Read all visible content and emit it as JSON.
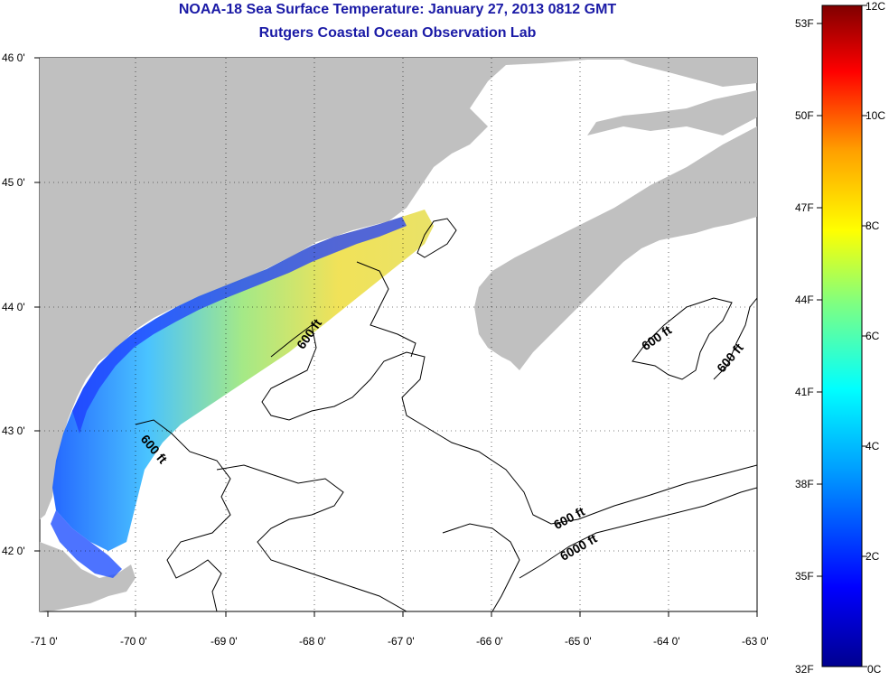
{
  "title_line1": "NOAA-18 Sea Surface Temperature:  January 27, 2013 0812 GMT",
  "title_line2": "Rutgers Coastal Ocean Observation Lab",
  "lon_labels": [
    "-71 0'",
    "-70 0'",
    "-69 0'",
    "-68 0'",
    "-67 0'",
    "-66 0'",
    "-65 0'",
    "-64 0'",
    "-63 0'"
  ],
  "lat_labels": [
    "46 0'",
    "45 0'",
    "44 0'",
    "43 0'",
    "42 0'"
  ],
  "contour_labels": [
    "600 ft",
    "600 ft",
    "600 ft",
    "600 ft",
    "600 ft",
    "6000 ft"
  ],
  "colorbar": {
    "f_labels": [
      "53F",
      "50F",
      "47F",
      "44F",
      "41F",
      "38F",
      "35F",
      "32F"
    ],
    "c_labels": [
      "12C",
      "10C",
      "8C",
      "6C",
      "4C",
      "2C",
      "0C"
    ]
  },
  "colors": {
    "land": "#c0c0c0",
    "title": "#1a1aa6",
    "ocean_nodata": "#ffffff"
  }
}
